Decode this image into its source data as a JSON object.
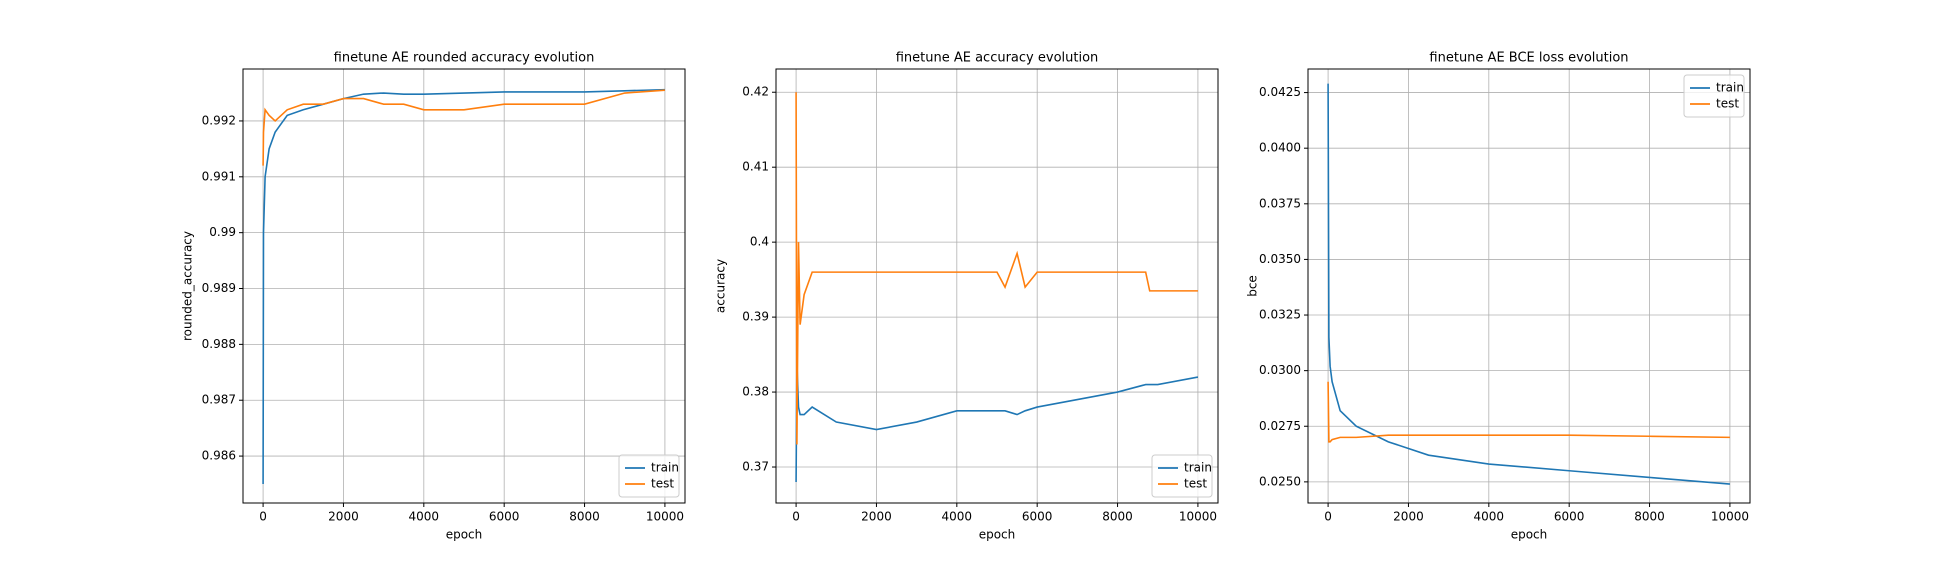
{
  "chart_data": [
    {
      "type": "line",
      "title": "finetune AE rounded accuracy evolution",
      "x_label": "epoch",
      "y_label": "rounded_accuracy",
      "x": [
        0,
        10,
        50,
        150,
        300,
        600,
        1000,
        1500,
        2000,
        2500,
        3000,
        3500,
        4000,
        5000,
        6000,
        7000,
        8000,
        9000,
        10000
      ],
      "series": [
        {
          "name": "train",
          "color": "#1f77b4",
          "values": [
            0.9855,
            0.99,
            0.991,
            0.9915,
            0.9918,
            0.9921,
            0.9922,
            0.9923,
            0.9924,
            0.99248,
            0.9925,
            0.99248,
            0.99248,
            0.9925,
            0.99252,
            0.99252,
            0.99252,
            0.99254,
            0.99256
          ]
        },
        {
          "name": "test",
          "color": "#ff7f0e",
          "values": [
            0.9912,
            0.9918,
            0.9922,
            0.9921,
            0.992,
            0.9922,
            0.9923,
            0.9923,
            0.9924,
            0.9924,
            0.9923,
            0.9923,
            0.9922,
            0.9922,
            0.9923,
            0.9923,
            0.9923,
            0.9925,
            0.99255
          ]
        }
      ],
      "xlim": [
        -500,
        10500
      ],
      "xticks": [
        0,
        2000,
        4000,
        6000,
        8000,
        10000
      ],
      "ylim": [
        0.98516,
        0.99293
      ],
      "yticks": [
        0.986,
        0.987,
        0.988,
        0.989,
        0.99,
        0.991,
        0.992
      ],
      "grid": true,
      "legend": "lower right"
    },
    {
      "type": "line",
      "title": "finetune AE accuracy evolution",
      "x_label": "epoch",
      "y_label": "accuracy",
      "x": [
        0,
        20,
        60,
        100,
        200,
        400,
        1000,
        2000,
        3000,
        4000,
        5000,
        5200,
        5500,
        5700,
        6000,
        7000,
        8000,
        8700,
        8800,
        9000,
        10000
      ],
      "series": [
        {
          "name": "train",
          "color": "#1f77b4",
          "values": [
            0.368,
            0.384,
            0.378,
            0.377,
            0.377,
            0.378,
            0.376,
            0.375,
            0.376,
            0.3775,
            0.3775,
            0.3775,
            0.377,
            0.3775,
            0.378,
            0.379,
            0.38,
            0.381,
            0.381,
            0.381,
            0.382
          ]
        },
        {
          "name": "test",
          "color": "#ff7f0e",
          "values": [
            0.42,
            0.373,
            0.4,
            0.389,
            0.393,
            0.396,
            0.396,
            0.396,
            0.396,
            0.396,
            0.396,
            0.394,
            0.3985,
            0.394,
            0.396,
            0.396,
            0.396,
            0.396,
            0.3935,
            0.3935,
            0.3935
          ]
        }
      ],
      "xlim": [
        -500,
        10500
      ],
      "xticks": [
        0,
        2000,
        4000,
        6000,
        8000,
        10000
      ],
      "ylim": [
        0.3652,
        0.4231
      ],
      "yticks": [
        0.37,
        0.38,
        0.39,
        0.4,
        0.41,
        0.42
      ],
      "grid": true,
      "legend": "lower right"
    },
    {
      "type": "line",
      "title": "finetune AE BCE loss evolution",
      "x_label": "epoch",
      "y_label": "bce",
      "x": [
        0,
        20,
        50,
        100,
        300,
        700,
        1500,
        2500,
        4000,
        6000,
        8000,
        10000
      ],
      "series": [
        {
          "name": "train",
          "color": "#1f77b4",
          "values": [
            0.0429,
            0.0315,
            0.0302,
            0.0295,
            0.0282,
            0.0275,
            0.0268,
            0.0262,
            0.0258,
            0.0255,
            0.0252,
            0.0249
          ]
        },
        {
          "name": "test",
          "color": "#ff7f0e",
          "values": [
            0.0295,
            0.0268,
            0.0268,
            0.0269,
            0.027,
            0.027,
            0.0271,
            0.0271,
            0.0271,
            0.0271,
            0.02705,
            0.027
          ]
        }
      ],
      "xlim": [
        -500,
        10500
      ],
      "xticks": [
        0,
        2000,
        4000,
        6000,
        8000,
        10000
      ],
      "ylim": [
        0.02405,
        0.04356
      ],
      "yticks": [
        {
          "value": 0.025,
          "label": "0.0250"
        },
        0.0275,
        {
          "value": 0.03,
          "label": "0.0300"
        },
        0.0325,
        {
          "value": 0.035,
          "label": "0.0350"
        },
        0.0375,
        {
          "value": 0.04,
          "label": "0.0400"
        },
        0.0425
      ],
      "grid": true,
      "legend": "upper right"
    }
  ]
}
